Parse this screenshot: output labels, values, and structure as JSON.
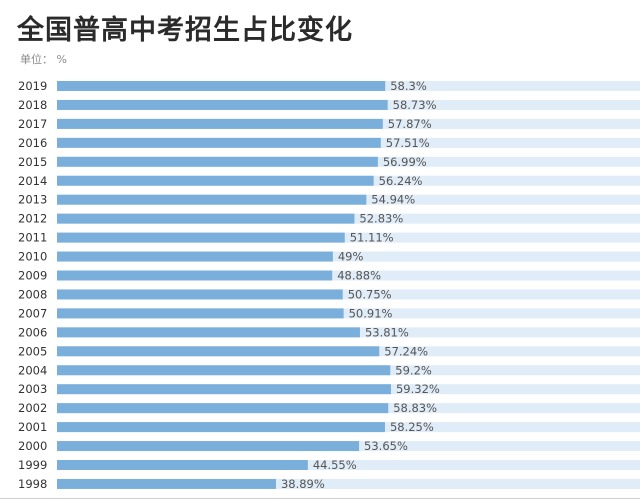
{
  "title": "全国普高中考招生占比变化",
  "unit_label": "单位： %",
  "colors": {
    "bar": "#7aaedb",
    "track": "#e0ecf7",
    "label": "#555555",
    "year": "#333333"
  },
  "chart_data": {
    "type": "bar",
    "orientation": "horizontal",
    "title": "全国普高中考招生占比变化",
    "unit": "%",
    "xlim": [
      0,
      100
    ],
    "categories": [
      "2019",
      "2018",
      "2017",
      "2016",
      "2015",
      "2014",
      "2013",
      "2012",
      "2011",
      "2010",
      "2009",
      "2008",
      "2007",
      "2006",
      "2005",
      "2004",
      "2003",
      "2002",
      "2001",
      "2000",
      "1999",
      "1998"
    ],
    "values": [
      58.3,
      58.73,
      57.87,
      57.51,
      56.99,
      56.24,
      54.94,
      52.83,
      51.11,
      49,
      48.88,
      50.75,
      50.91,
      53.81,
      57.24,
      59.2,
      59.32,
      58.83,
      58.25,
      53.65,
      44.55,
      38.89
    ],
    "value_labels": [
      "58.3%",
      "58.73%",
      "57.87%",
      "57.51%",
      "56.99%",
      "56.24%",
      "54.94%",
      "52.83%",
      "51.11%",
      "49%",
      "48.88%",
      "50.75%",
      "50.91%",
      "53.81%",
      "57.24%",
      "59.2%",
      "59.32%",
      "58.83%",
      "58.25%",
      "53.65%",
      "44.55%",
      "38.89%"
    ],
    "grid": false,
    "legend": "none"
  }
}
